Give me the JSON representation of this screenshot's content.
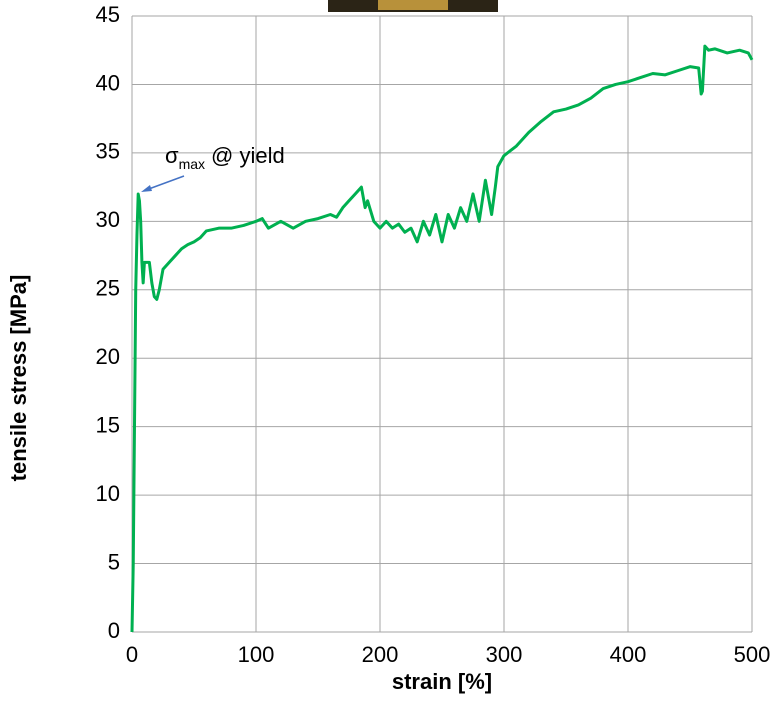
{
  "chart_data": {
    "type": "line",
    "xlabel": "strain  [%]",
    "ylabel": "tensile stress   [MPa]",
    "annotation": {
      "symbol": "σ",
      "subscript": "max",
      "text": "@ yield"
    },
    "xlim": [
      0,
      500
    ],
    "xticks": [
      0,
      100,
      200,
      300,
      400,
      500
    ],
    "ylim": [
      0,
      45
    ],
    "yticks": [
      0,
      5,
      10,
      15,
      20,
      25,
      30,
      35,
      40,
      45
    ],
    "grid": true,
    "series": [
      {
        "color": "#00b050",
        "x": [
          0,
          1,
          2,
          3,
          4,
          5,
          6,
          7,
          8,
          9,
          10,
          12,
          14,
          16,
          18,
          20,
          22,
          25,
          30,
          35,
          40,
          45,
          50,
          55,
          60,
          70,
          80,
          90,
          100,
          105,
          110,
          120,
          130,
          140,
          150,
          160,
          165,
          170,
          175,
          180,
          185,
          188,
          190,
          195,
          200,
          205,
          210,
          215,
          220,
          225,
          230,
          235,
          240,
          245,
          250,
          255,
          260,
          265,
          270,
          275,
          280,
          285,
          290,
          293,
          295,
          300,
          310,
          320,
          330,
          340,
          350,
          360,
          370,
          380,
          390,
          400,
          410,
          420,
          430,
          440,
          450,
          457,
          459,
          460,
          462,
          465,
          470,
          480,
          490,
          497,
          500
        ],
        "values": [
          0,
          5,
          15,
          25,
          29,
          32,
          31.5,
          30,
          27,
          25.5,
          27,
          27,
          27,
          25.5,
          24.5,
          24.3,
          25,
          26.5,
          27,
          27.5,
          28,
          28.3,
          28.5,
          28.8,
          29.3,
          29.5,
          29.5,
          29.7,
          30,
          30.2,
          29.5,
          30,
          29.5,
          30,
          30.2,
          30.5,
          30.3,
          31,
          31.5,
          32,
          32.5,
          31,
          31.5,
          30,
          29.5,
          30,
          29.5,
          29.8,
          29.2,
          29.5,
          28.5,
          30,
          29,
          30.5,
          28.5,
          30.5,
          29.5,
          31,
          30,
          32,
          30,
          33,
          30.5,
          32.5,
          34,
          34.8,
          35.5,
          36.5,
          37.3,
          38,
          38.2,
          38.5,
          39,
          39.7,
          40,
          40.2,
          40.5,
          40.8,
          40.7,
          41,
          41.3,
          41.2,
          39.3,
          39.5,
          42.8,
          42.5,
          42.6,
          42.3,
          42.5,
          42.3,
          41.8
        ]
      }
    ]
  }
}
